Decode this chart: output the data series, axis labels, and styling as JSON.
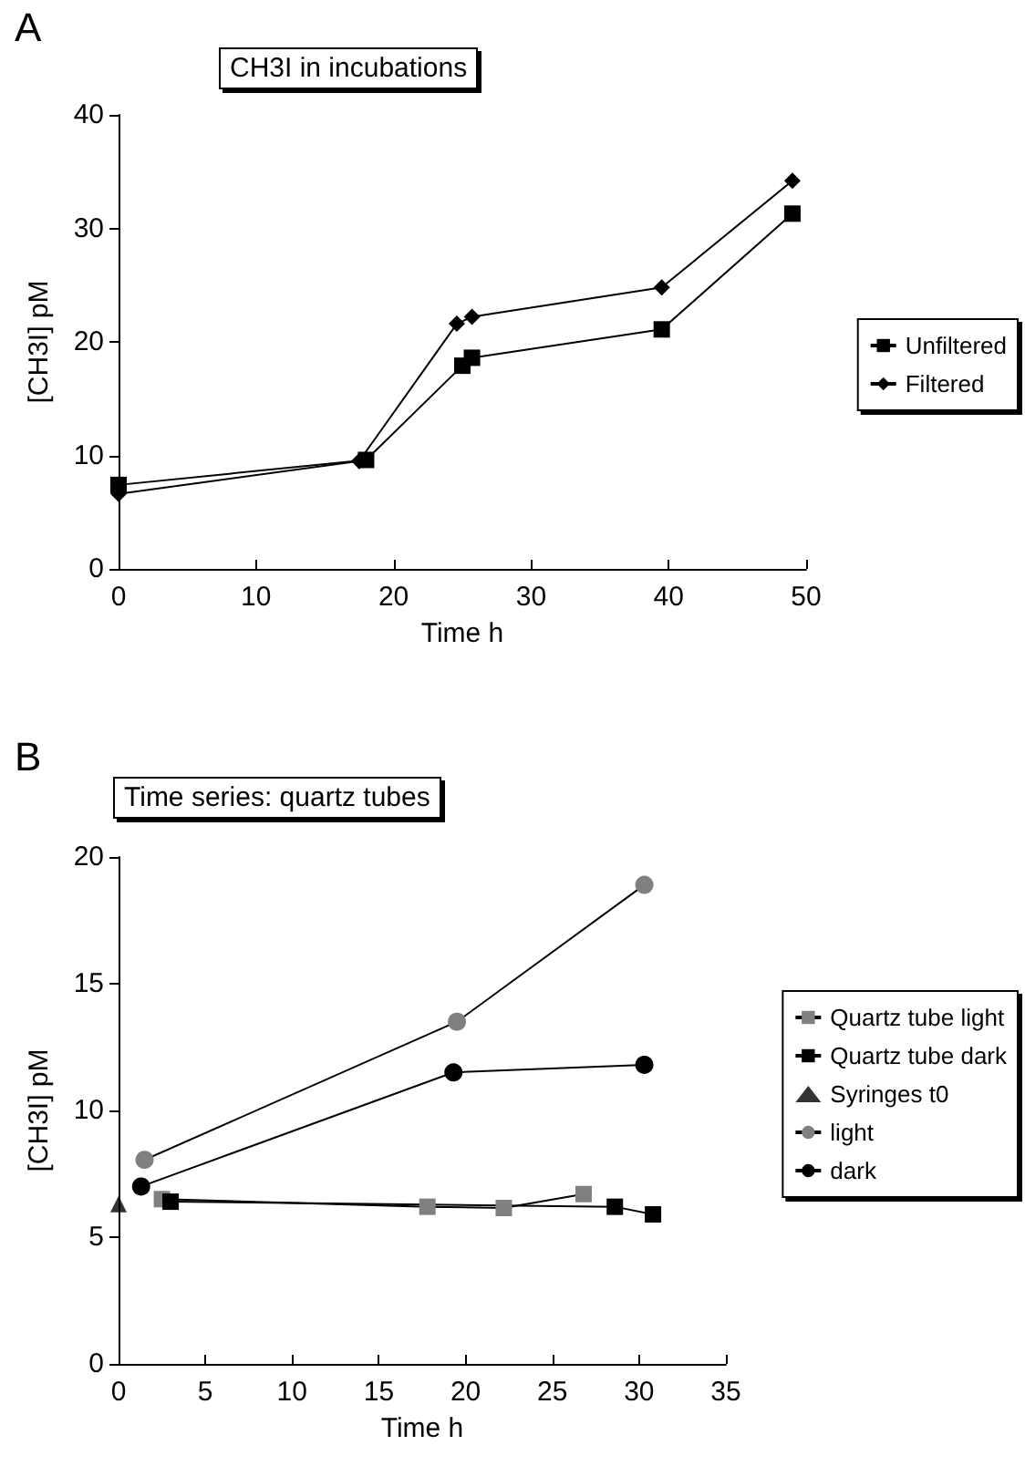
{
  "chart_data": [
    {
      "type": "line",
      "title": "CH3I in incubations",
      "annotations": [
        "A"
      ],
      "xlabel": "Time h",
      "ylabel": "[CH3I] pM",
      "xlim": [
        0,
        50
      ],
      "xticks": [
        0,
        10,
        20,
        30,
        40,
        50
      ],
      "ylim": [
        0,
        40
      ],
      "yticks": [
        0,
        10,
        20,
        30,
        40
      ],
      "grid": false,
      "legend": "right",
      "line_style": "solid",
      "series": [
        {
          "name": "Unfiltered",
          "color": "#000000",
          "marker": "square",
          "x": [
            0,
            18,
            25,
            25.7,
            39.5,
            49
          ],
          "values": [
            7.4,
            9.6,
            17.9,
            18.6,
            21.1,
            31.3
          ]
        },
        {
          "name": "Filtered",
          "color": "#000000",
          "marker": "diamond",
          "x": [
            0,
            17.5,
            24.6,
            25.7,
            39.5,
            49
          ],
          "values": [
            6.6,
            9.5,
            21.6,
            22.2,
            24.8,
            34.2
          ]
        }
      ]
    },
    {
      "type": "line",
      "title": "Time series: quartz tubes",
      "annotations": [
        "B"
      ],
      "xlabel": "Time h",
      "ylabel": "[CH3I] pM",
      "xlim": [
        0,
        35
      ],
      "xticks": [
        0,
        5,
        10,
        15,
        20,
        25,
        30,
        35
      ],
      "ylim": [
        0,
        20
      ],
      "yticks": [
        0,
        5,
        10,
        15,
        20
      ],
      "grid": false,
      "legend": "right",
      "line_style": "solid",
      "series": [
        {
          "name": "Quartz tube light",
          "color": "#808080",
          "marker": "square",
          "x": [
            2.5,
            17.8,
            22.2,
            26.8
          ],
          "values": [
            6.5,
            6.2,
            6.15,
            6.7
          ]
        },
        {
          "name": "Quartz tube dark",
          "color": "#000000",
          "marker": "square",
          "x": [
            3,
            28.6,
            30.8
          ],
          "values": [
            6.4,
            6.2,
            5.9
          ]
        },
        {
          "name": "Syringes t0",
          "type": "scatter",
          "color": "#000000",
          "marker": "triangle",
          "x": [
            0
          ],
          "values": [
            6.3
          ]
        },
        {
          "name": "light",
          "color": "#808080",
          "marker": "circle",
          "x": [
            1.5,
            19.5,
            30.3
          ],
          "values": [
            8.05,
            13.5,
            18.9
          ]
        },
        {
          "name": "dark",
          "color": "#000000",
          "marker": "circle",
          "x": [
            1.3,
            19.3,
            30.3
          ],
          "values": [
            7.0,
            11.5,
            11.8
          ]
        }
      ]
    }
  ]
}
